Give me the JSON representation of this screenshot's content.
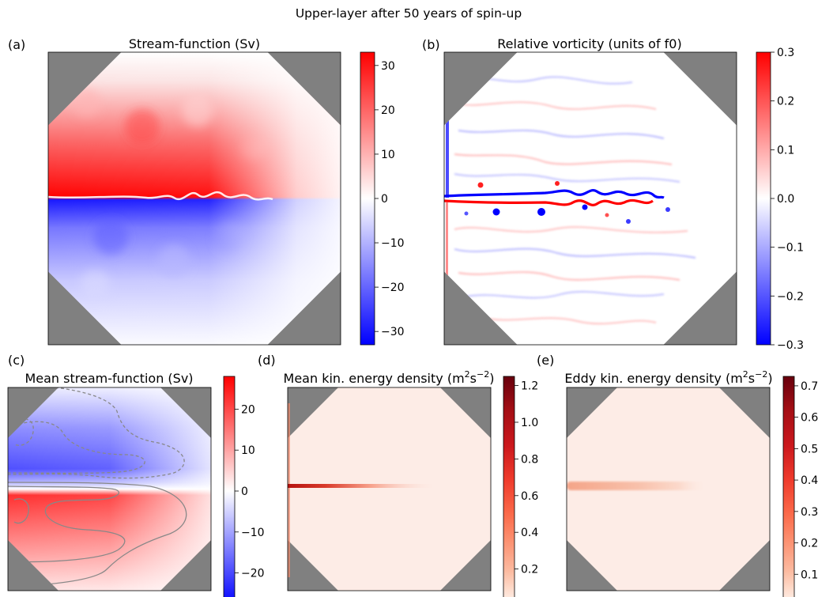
{
  "figure": {
    "suptitle": "Upper-layer after 50 years of spin-up"
  },
  "colors": {
    "gray": "#808080",
    "red": "#ff0000",
    "blue": "#0000ff",
    "contour": "#888888",
    "ticks": "#000000"
  },
  "chart_data": [
    {
      "panel_label": "(a)",
      "type": "heatmap",
      "title": "Stream-function (Sv)",
      "colormap": "bwr",
      "domain_shape": "octagon",
      "outside_color": "gray",
      "colorbar": {
        "range": [
          -33,
          33
        ],
        "ticks": [
          30,
          20,
          10,
          0,
          -10,
          -20,
          -30
        ],
        "tick_labels": [
          "30",
          "20",
          "10",
          "0",
          "−10",
          "−20",
          "−30"
        ]
      }
    },
    {
      "panel_label": "(b)",
      "type": "heatmap",
      "title": "Relative vorticity (units of f0)",
      "colormap": "bwr",
      "domain_shape": "octagon",
      "outside_color": "gray",
      "colorbar": {
        "range": [
          -0.3,
          0.3
        ],
        "ticks": [
          0.3,
          0.2,
          0.1,
          0.0,
          -0.1,
          -0.2,
          -0.3
        ],
        "tick_labels": [
          "0.3",
          "0.2",
          "0.1",
          "0.0",
          "−0.1",
          "−0.2",
          "−0.3"
        ]
      }
    },
    {
      "panel_label": "(c)",
      "type": "heatmap",
      "title": "Mean stream-function (Sv)",
      "colormap": "bwr",
      "domain_shape": "octagon",
      "outside_color": "gray",
      "contours": true,
      "colorbar": {
        "range": [
          -28,
          28
        ],
        "ticks": [
          20,
          10,
          0,
          -10,
          -20
        ],
        "tick_labels": [
          "20",
          "10",
          "0",
          "−10",
          "−20"
        ]
      }
    },
    {
      "panel_label": "(d)",
      "type": "heatmap",
      "title_parts": [
        "Mean kin. energy density (m",
        "2",
        "s",
        "−2",
        ")"
      ],
      "colormap": "Reds",
      "domain_shape": "octagon",
      "outside_color": "gray",
      "colorbar": {
        "range": [
          0,
          1.25
        ],
        "ticks": [
          1.2,
          1.0,
          0.8,
          0.6,
          0.4,
          0.2
        ],
        "tick_labels": [
          "1.2",
          "1.0",
          "0.8",
          "0.6",
          "0.4",
          "0.2"
        ]
      }
    },
    {
      "panel_label": "(e)",
      "type": "heatmap",
      "title_parts": [
        "Eddy kin. energy density (m",
        "2",
        "s",
        "−2",
        ")"
      ],
      "colormap": "Reds",
      "domain_shape": "octagon",
      "outside_color": "gray",
      "colorbar": {
        "range": [
          0,
          0.73
        ],
        "ticks": [
          0.7,
          0.6,
          0.5,
          0.4,
          0.3,
          0.2,
          0.1
        ],
        "tick_labels": [
          "0.7",
          "0.6",
          "0.5",
          "0.4",
          "0.3",
          "0.2",
          "0.1"
        ]
      }
    }
  ]
}
